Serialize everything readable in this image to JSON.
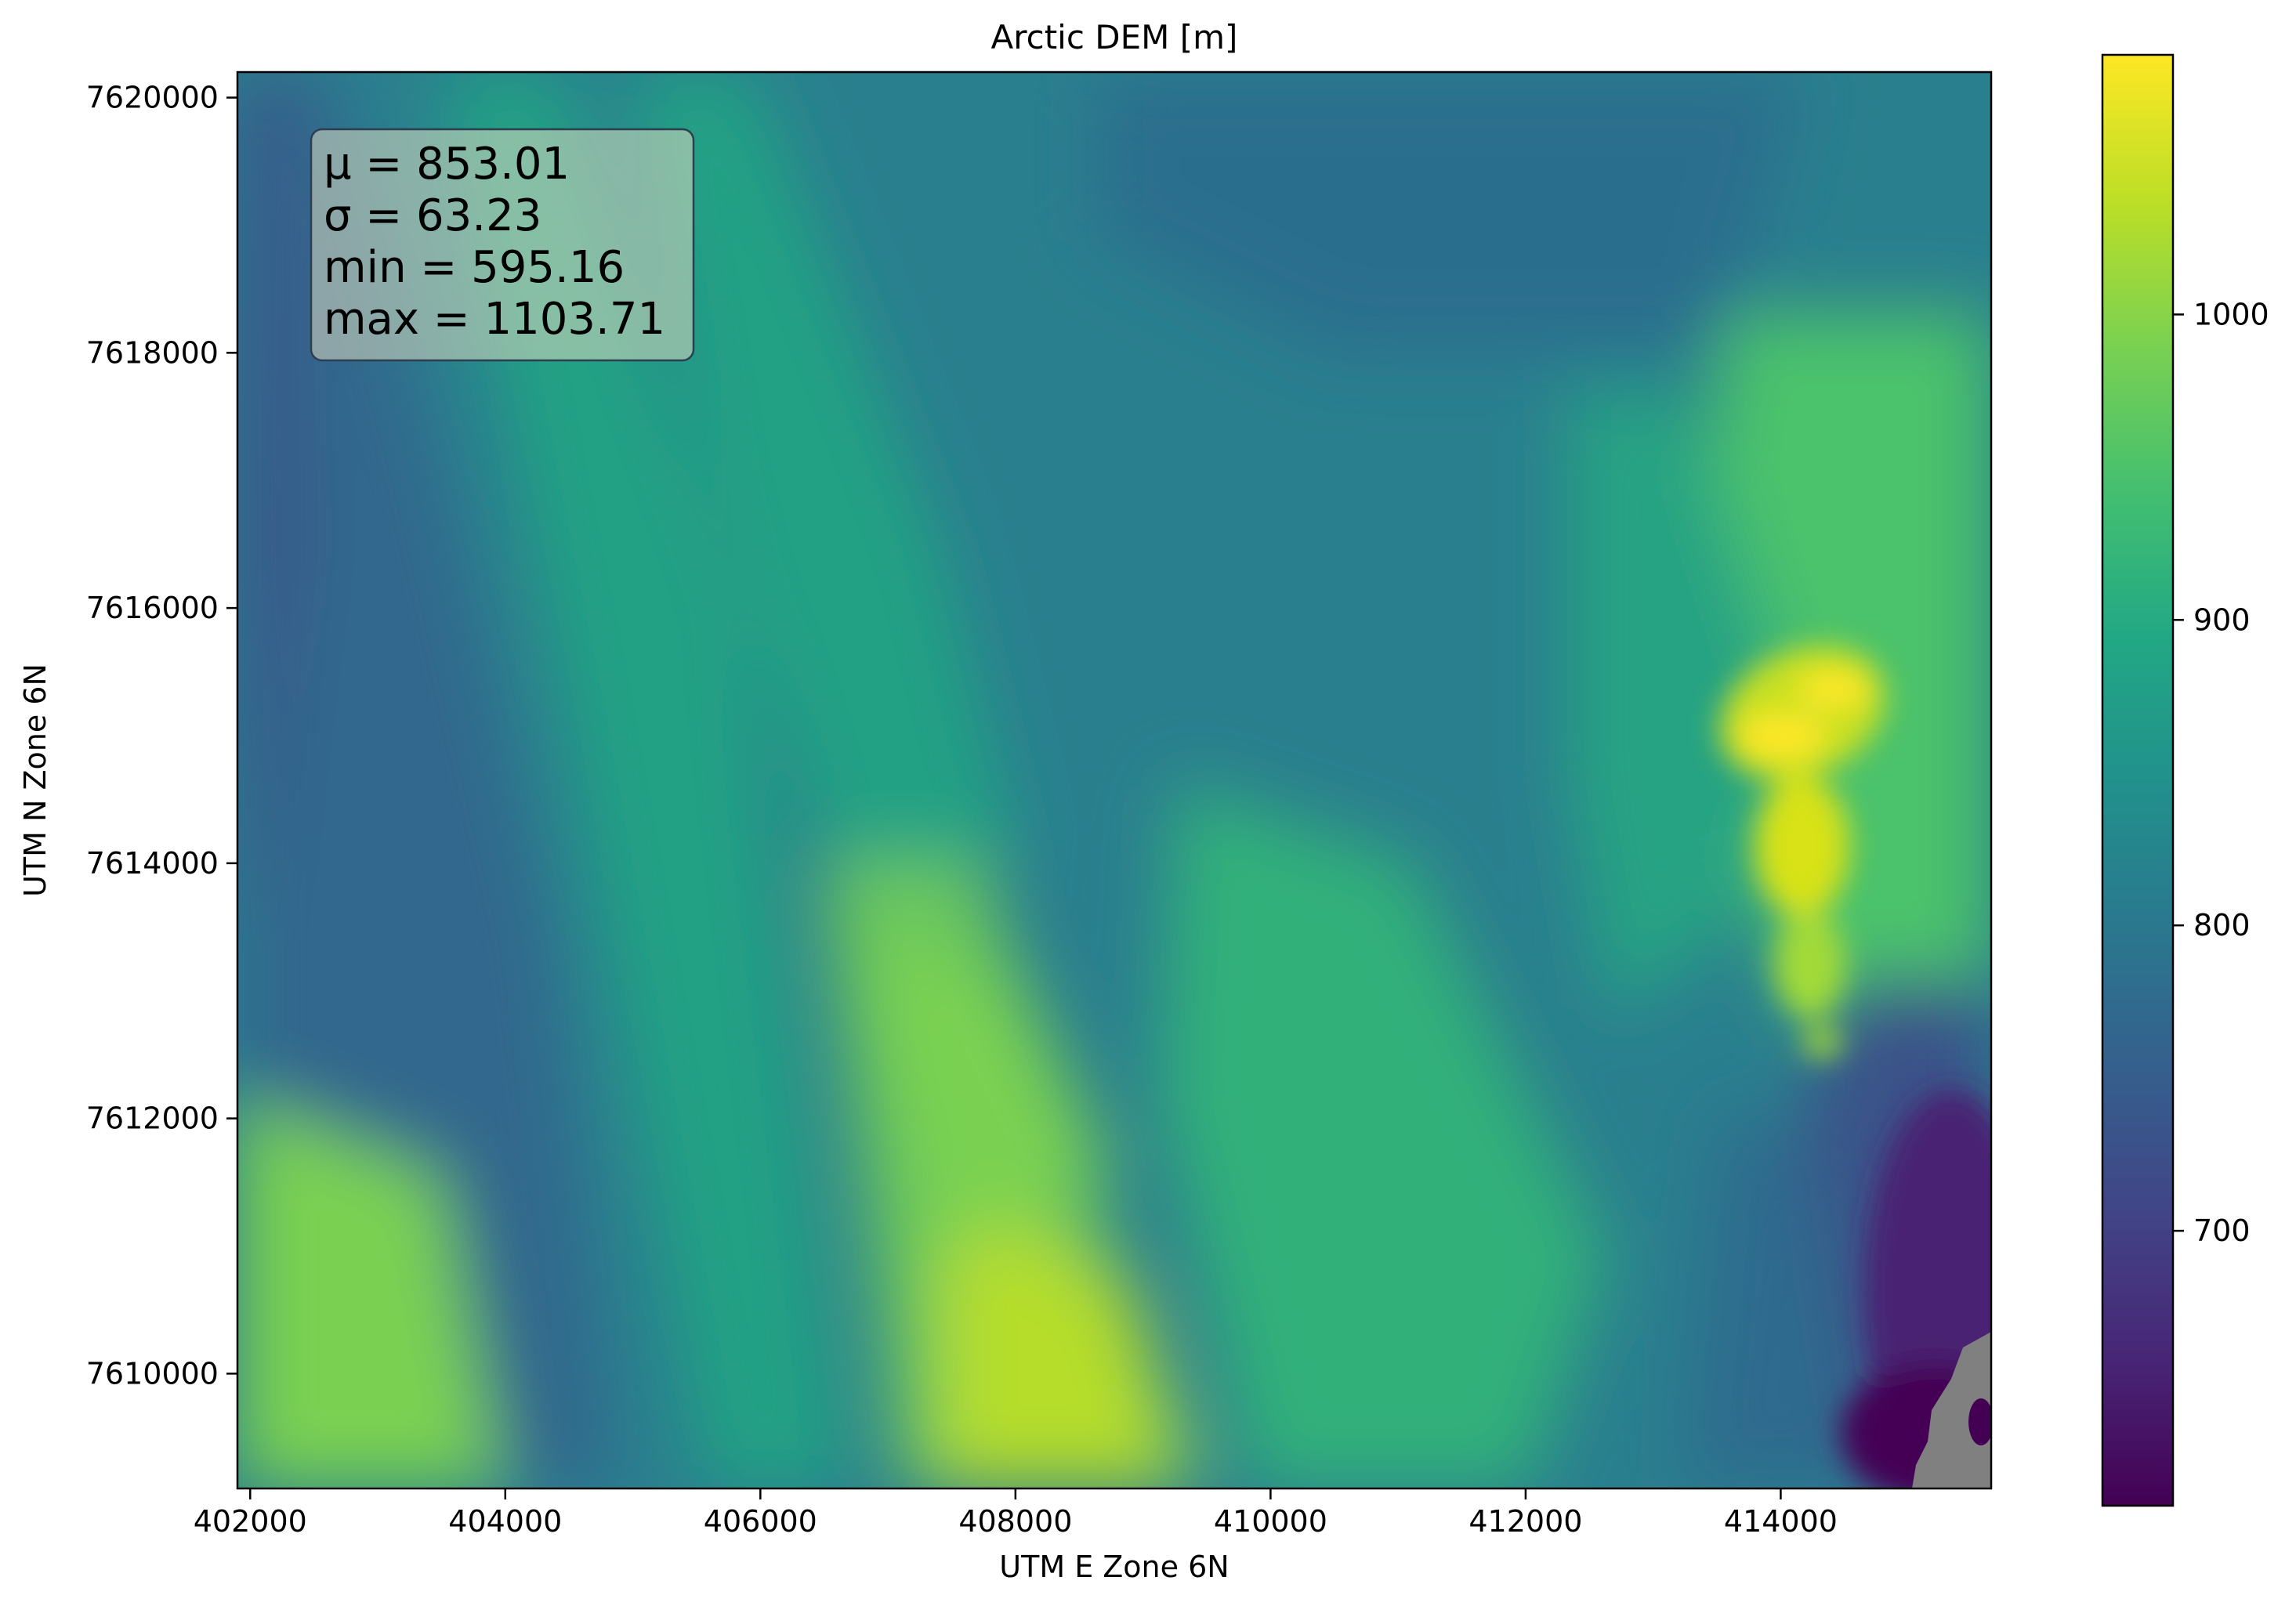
{
  "chart_data": {
    "type": "heatmap",
    "title": "Arctic DEM [m]",
    "xlabel": "UTM E Zone 6N",
    "ylabel": "UTM N Zone 6N",
    "xlim": [
      401900,
      415650
    ],
    "ylim": [
      7609100,
      7620200
    ],
    "x_ticks": [
      402000,
      404000,
      406000,
      408000,
      410000,
      412000,
      414000
    ],
    "x_tick_labels": [
      "402000",
      "404000",
      "406000",
      "408000",
      "410000",
      "412000",
      "414000"
    ],
    "y_ticks": [
      7610000,
      7612000,
      7614000,
      7616000,
      7618000,
      7620000
    ],
    "y_tick_labels": [
      "7610000",
      "7612000",
      "7614000",
      "7616000",
      "7618000",
      "7620000"
    ],
    "colormap": "viridis",
    "nodata_color": "#808080",
    "colorbar": {
      "range": [
        610,
        1085
      ],
      "ticks": [
        700,
        800,
        900,
        1000
      ],
      "tick_labels": [
        "700",
        "800",
        "900",
        "1000"
      ]
    },
    "stats_box": {
      "lines": [
        "μ = 853.01",
        "σ = 63.23",
        "min = 595.16",
        "max = 1103.71"
      ]
    },
    "grid": false,
    "legend": "none"
  }
}
